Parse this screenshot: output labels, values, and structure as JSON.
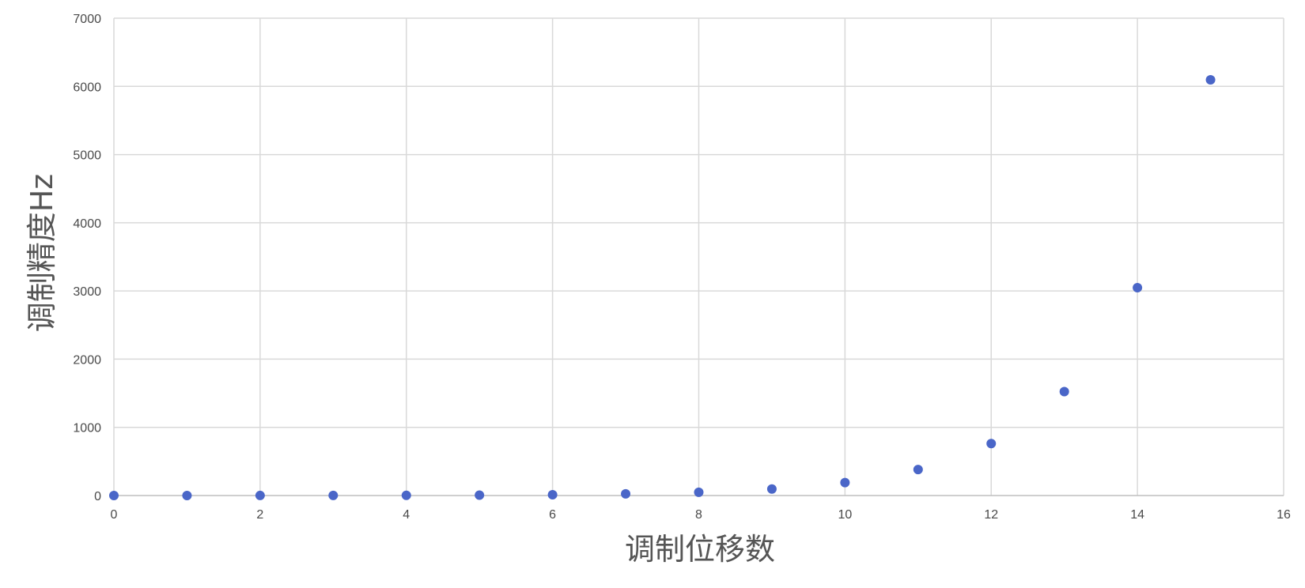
{
  "chart_data": {
    "type": "scatter",
    "title": "",
    "xlabel": "调制位移数",
    "ylabel": "调制精度Hz",
    "xlim": [
      0,
      16
    ],
    "ylim": [
      0,
      7000
    ],
    "x_ticks": [
      0,
      2,
      4,
      6,
      8,
      10,
      12,
      14,
      16
    ],
    "y_ticks": [
      0,
      1000,
      2000,
      3000,
      4000,
      5000,
      6000,
      7000
    ],
    "x_tick_labels": [
      "0",
      "2",
      "4",
      "6",
      "8",
      "10",
      "12",
      "14",
      "16"
    ],
    "y_tick_labels": [
      "0",
      "1000",
      "2000",
      "3000",
      "4000",
      "5000",
      "6000",
      "7000"
    ],
    "grid": true,
    "legend": "none",
    "marker_color": "#4a66c8",
    "series": [
      {
        "x": [
          0,
          1,
          2,
          3,
          4,
          5,
          6,
          7,
          8,
          9,
          10,
          11,
          12,
          13,
          14,
          15
        ],
        "y": [
          0.19,
          0.37,
          0.75,
          1.5,
          3,
          6,
          12,
          24,
          48,
          95,
          190,
          381,
          762,
          1524,
          3048,
          6096
        ]
      }
    ]
  }
}
